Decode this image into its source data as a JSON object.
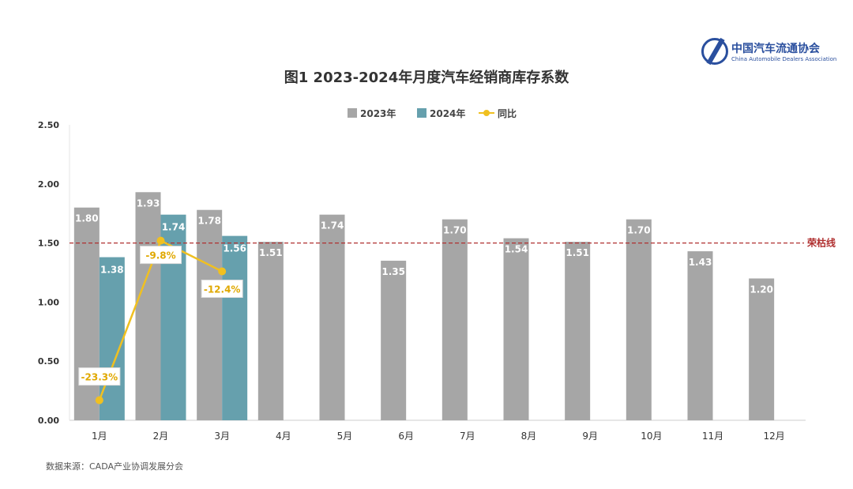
{
  "logo": {
    "name_cn": "中国汽车流通协会",
    "name_en": "China Automobile Dealers Association"
  },
  "source": "数据来源：CADA产业协调发展分会",
  "colors": {
    "y2023": "#a6a6a6",
    "y2024": "#66a0ad",
    "yoy": "#f0c020",
    "ref": "#b03030"
  },
  "chart_data": {
    "type": "bar",
    "title": "图1  2023-2024年月度汽车经销商库存系数",
    "categories": [
      "1月",
      "2月",
      "3月",
      "4月",
      "5月",
      "6月",
      "7月",
      "8月",
      "9月",
      "10月",
      "11月",
      "12月"
    ],
    "series": [
      {
        "name": "2023年",
        "type": "bar",
        "values": [
          1.8,
          1.93,
          1.78,
          1.51,
          1.74,
          1.35,
          1.7,
          1.54,
          1.51,
          1.7,
          1.43,
          1.2
        ]
      },
      {
        "name": "2024年",
        "type": "bar",
        "values": [
          1.38,
          1.74,
          1.56,
          null,
          null,
          null,
          null,
          null,
          null,
          null,
          null,
          null
        ]
      },
      {
        "name": "同比",
        "type": "line",
        "axis": "secondary",
        "values": [
          -23.3,
          -9.8,
          -12.4,
          null,
          null,
          null,
          null,
          null,
          null,
          null,
          null,
          null
        ],
        "labels": [
          "-23.3%",
          "-9.8%",
          "-12.4%"
        ]
      }
    ],
    "ylim": [
      0,
      2.5
    ],
    "yticks": [
      "0.00",
      "0.50",
      "1.00",
      "1.50",
      "2.00",
      "2.50"
    ],
    "y2lim": [
      -25,
      0
    ],
    "reference_line": {
      "value": 1.5,
      "label": "荣枯线"
    },
    "legend": "top-center",
    "grid": false
  }
}
